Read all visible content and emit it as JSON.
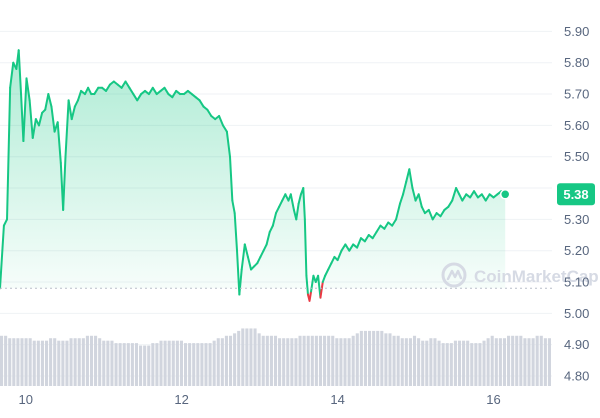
{
  "colors": {
    "up": "#16c784",
    "down": "#ea3943",
    "volume": "#d1d5de",
    "grid": "#eff2f5",
    "axis_text": "#58667e",
    "watermark": "#d6dae4",
    "fill_top": "#16c784"
  },
  "watermark": {
    "text": "CoinMarketCap",
    "icon": "coinmarketcap-logo-icon"
  },
  "current_price_label": "5.38",
  "chart_data": {
    "type": "area",
    "title": "",
    "xlabel": "",
    "ylabel": "",
    "x_ticks": [
      "10",
      "12",
      "14",
      "16"
    ],
    "x_tick_values": [
      10,
      12,
      14,
      16
    ],
    "y_ticks": [
      "4.80",
      "4.90",
      "5.00",
      "5.10",
      "5.20",
      "5.30",
      "5.40",
      "5.50",
      "5.60",
      "5.70",
      "5.80",
      "5.90"
    ],
    "ylim": [
      4.8,
      5.93
    ],
    "xlim": [
      9.67,
      16.75
    ],
    "baseline": 5.08,
    "grid": true,
    "grid_direction": "horizontal",
    "y_axis_position": "right",
    "series": [
      {
        "type": "line-area",
        "points": [
          [
            9.67,
            5.08
          ],
          [
            9.72,
            5.28
          ],
          [
            9.76,
            5.3
          ],
          [
            9.8,
            5.72
          ],
          [
            9.84,
            5.8
          ],
          [
            9.88,
            5.78
          ],
          [
            9.91,
            5.84
          ],
          [
            9.94,
            5.7
          ],
          [
            9.97,
            5.55
          ],
          [
            10.01,
            5.75
          ],
          [
            10.05,
            5.68
          ],
          [
            10.09,
            5.56
          ],
          [
            10.13,
            5.62
          ],
          [
            10.17,
            5.6
          ],
          [
            10.21,
            5.64
          ],
          [
            10.25,
            5.65
          ],
          [
            10.29,
            5.7
          ],
          [
            10.33,
            5.66
          ],
          [
            10.37,
            5.58
          ],
          [
            10.41,
            5.61
          ],
          [
            10.45,
            5.48
          ],
          [
            10.48,
            5.33
          ],
          [
            10.51,
            5.5
          ],
          [
            10.55,
            5.68
          ],
          [
            10.59,
            5.62
          ],
          [
            10.63,
            5.66
          ],
          [
            10.67,
            5.68
          ],
          [
            10.71,
            5.71
          ],
          [
            10.76,
            5.7
          ],
          [
            10.8,
            5.72
          ],
          [
            10.84,
            5.7
          ],
          [
            10.88,
            5.7
          ],
          [
            10.93,
            5.72
          ],
          [
            10.98,
            5.72
          ],
          [
            11.03,
            5.71
          ],
          [
            11.08,
            5.73
          ],
          [
            11.13,
            5.74
          ],
          [
            11.18,
            5.73
          ],
          [
            11.23,
            5.72
          ],
          [
            11.28,
            5.74
          ],
          [
            11.33,
            5.72
          ],
          [
            11.38,
            5.7
          ],
          [
            11.43,
            5.68
          ],
          [
            11.48,
            5.7
          ],
          [
            11.53,
            5.71
          ],
          [
            11.58,
            5.7
          ],
          [
            11.63,
            5.72
          ],
          [
            11.68,
            5.7
          ],
          [
            11.73,
            5.71
          ],
          [
            11.78,
            5.72
          ],
          [
            11.83,
            5.7
          ],
          [
            11.88,
            5.69
          ],
          [
            11.93,
            5.71
          ],
          [
            11.98,
            5.7
          ],
          [
            12.03,
            5.7
          ],
          [
            12.08,
            5.71
          ],
          [
            12.13,
            5.7
          ],
          [
            12.18,
            5.69
          ],
          [
            12.23,
            5.68
          ],
          [
            12.28,
            5.66
          ],
          [
            12.33,
            5.65
          ],
          [
            12.38,
            5.63
          ],
          [
            12.43,
            5.62
          ],
          [
            12.48,
            5.63
          ],
          [
            12.53,
            5.6
          ],
          [
            12.58,
            5.58
          ],
          [
            12.62,
            5.5
          ],
          [
            12.65,
            5.36
          ],
          [
            12.68,
            5.32
          ],
          [
            12.71,
            5.2
          ],
          [
            12.74,
            5.06
          ],
          [
            12.77,
            5.14
          ],
          [
            12.81,
            5.22
          ],
          [
            12.85,
            5.18
          ],
          [
            12.89,
            5.14
          ],
          [
            12.93,
            5.15
          ],
          [
            12.97,
            5.16
          ],
          [
            13.01,
            5.18
          ],
          [
            13.05,
            5.2
          ],
          [
            13.09,
            5.22
          ],
          [
            13.13,
            5.26
          ],
          [
            13.17,
            5.28
          ],
          [
            13.21,
            5.32
          ],
          [
            13.25,
            5.34
          ],
          [
            13.29,
            5.36
          ],
          [
            13.33,
            5.38
          ],
          [
            13.37,
            5.36
          ],
          [
            13.4,
            5.38
          ],
          [
            13.44,
            5.33
          ],
          [
            13.47,
            5.3
          ],
          [
            13.5,
            5.35
          ],
          [
            13.53,
            5.38
          ],
          [
            13.56,
            5.4
          ],
          [
            13.58,
            5.3
          ],
          [
            13.6,
            5.12
          ],
          [
            13.62,
            5.06
          ],
          [
            13.64,
            5.04
          ],
          [
            13.66,
            5.07
          ],
          [
            13.69,
            5.12
          ],
          [
            13.72,
            5.1
          ],
          [
            13.75,
            5.12
          ],
          [
            13.78,
            5.05
          ],
          [
            13.81,
            5.1
          ],
          [
            13.84,
            5.12
          ],
          [
            13.88,
            5.14
          ],
          [
            13.92,
            5.16
          ],
          [
            13.96,
            5.18
          ],
          [
            14.0,
            5.17
          ],
          [
            14.05,
            5.2
          ],
          [
            14.1,
            5.22
          ],
          [
            14.15,
            5.2
          ],
          [
            14.2,
            5.22
          ],
          [
            14.25,
            5.21
          ],
          [
            14.3,
            5.24
          ],
          [
            14.35,
            5.23
          ],
          [
            14.4,
            5.25
          ],
          [
            14.45,
            5.24
          ],
          [
            14.5,
            5.26
          ],
          [
            14.55,
            5.28
          ],
          [
            14.6,
            5.27
          ],
          [
            14.65,
            5.29
          ],
          [
            14.7,
            5.28
          ],
          [
            14.75,
            5.3
          ],
          [
            14.8,
            5.35
          ],
          [
            14.84,
            5.38
          ],
          [
            14.88,
            5.42
          ],
          [
            14.92,
            5.46
          ],
          [
            14.96,
            5.4
          ],
          [
            15.0,
            5.36
          ],
          [
            15.04,
            5.38
          ],
          [
            15.08,
            5.34
          ],
          [
            15.12,
            5.32
          ],
          [
            15.17,
            5.33
          ],
          [
            15.22,
            5.3
          ],
          [
            15.27,
            5.32
          ],
          [
            15.32,
            5.31
          ],
          [
            15.37,
            5.33
          ],
          [
            15.42,
            5.34
          ],
          [
            15.47,
            5.36
          ],
          [
            15.52,
            5.4
          ],
          [
            15.56,
            5.38
          ],
          [
            15.6,
            5.36
          ],
          [
            15.65,
            5.38
          ],
          [
            15.7,
            5.37
          ],
          [
            15.75,
            5.39
          ],
          [
            15.8,
            5.37
          ],
          [
            15.85,
            5.38
          ],
          [
            15.9,
            5.36
          ],
          [
            15.95,
            5.38
          ],
          [
            16.0,
            5.37
          ],
          [
            16.05,
            5.38
          ],
          [
            16.1,
            5.39
          ],
          [
            16.15,
            5.38
          ]
        ]
      }
    ],
    "volume_bars": {
      "note": "",
      "values": [
        5,
        5,
        4,
        4,
        4,
        4,
        4,
        4,
        3,
        3,
        3,
        3,
        4,
        4,
        3,
        3,
        3,
        4,
        4,
        4,
        4,
        5,
        5,
        5,
        4,
        3,
        3,
        3,
        2,
        2,
        2,
        2,
        2,
        2,
        1,
        1,
        1,
        2,
        2,
        3,
        3,
        3,
        3,
        3,
        3,
        2,
        2,
        2,
        2,
        2,
        2,
        2,
        3,
        4,
        4,
        5,
        5,
        6,
        7,
        8,
        8,
        8,
        8,
        6,
        5,
        5,
        5,
        5,
        4,
        4,
        4,
        4,
        4,
        5,
        5,
        5,
        5,
        5,
        5,
        5,
        5,
        5,
        4,
        4,
        4,
        4,
        5,
        6,
        7,
        7,
        7,
        7,
        7,
        7,
        6,
        6,
        5,
        5,
        4,
        4,
        4,
        5,
        4,
        3,
        3,
        4,
        4,
        3,
        2,
        2,
        2,
        3,
        3,
        3,
        3,
        2,
        2,
        2,
        3,
        4,
        5,
        4,
        4,
        4,
        5,
        5,
        5,
        5,
        4,
        4,
        4,
        5,
        5,
        4,
        4
      ],
      "range": [
        0,
        9
      ]
    }
  }
}
